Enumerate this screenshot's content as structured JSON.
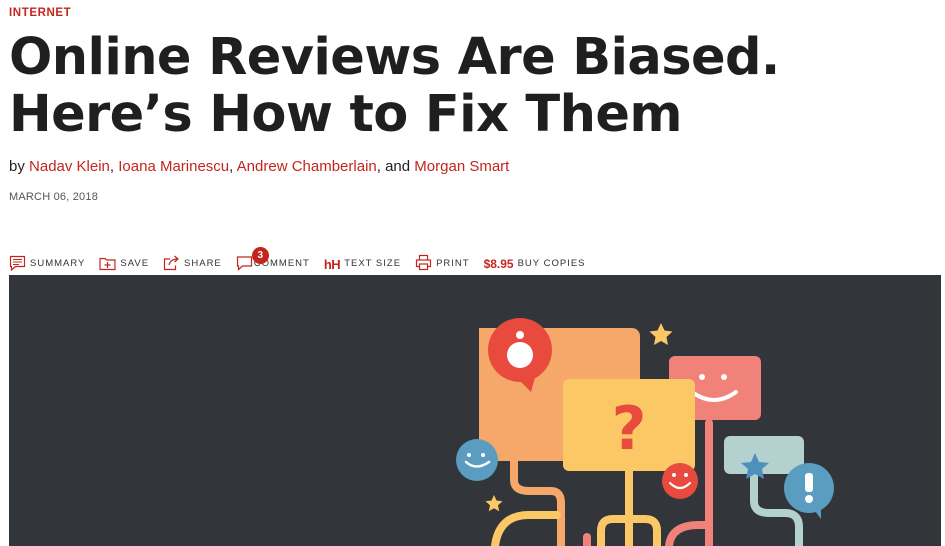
{
  "category": "INTERNET",
  "article": {
    "title": "Online Reviews Are Biased. Here’s How to Fix Them",
    "byline": {
      "prefix": "by",
      "authors": [
        "Nadav Klein",
        "Ioana Marinescu",
        "Andrew Chamberlain",
        "Morgan Smart"
      ],
      "sep1": ",",
      "sep2": ",",
      "sep3": ", and"
    },
    "date": "MARCH 06, 2018"
  },
  "toolbar": {
    "summary": "SUMMARY",
    "save": "SAVE",
    "share": "SHARE",
    "comment": "COMMENT",
    "comment_count": "3",
    "text_size_icon": "hH",
    "text_size": "TEXT SIZE",
    "print": "PRINT",
    "price": "$8.95",
    "buy": "BUY COPIES"
  },
  "hero": {
    "image": "online-reviews-illustration",
    "question_mark": "?"
  },
  "icons": {
    "summary": "summary-icon",
    "save": "save-icon",
    "share": "share-icon",
    "comment": "comment-icon",
    "text_size": "text-size-icon",
    "print": "print-icon"
  },
  "colors": {
    "accent": "#c4261e",
    "hero_background": "#32363b",
    "bubble_orange": "#f6a86a",
    "bubble_yellow": "#fcc866",
    "bubble_pink": "#f0827a",
    "bubble_teal": "#b4d1cf",
    "circle_red": "#e84a3d",
    "circle_blue": "#5b9dc0",
    "star_blue": "#4c91bc"
  }
}
